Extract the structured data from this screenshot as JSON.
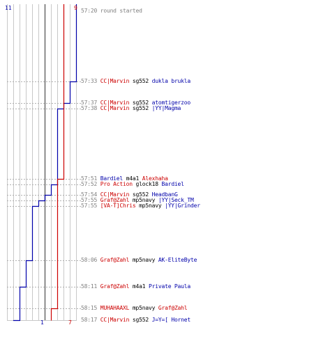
{
  "colors": {
    "blue_team": "#0000aa",
    "red_team": "#cc0000",
    "grid": "#c8c8c8",
    "timestamp": "#808080",
    "weapon": "#000000"
  },
  "scores": {
    "blue_start": "11",
    "red_start": "9",
    "blue_end": "1",
    "red_end": "7"
  },
  "events": [
    {
      "time": "57:20",
      "note": "round started"
    },
    {
      "time": "57:33",
      "killer": "CC|Marvin",
      "killer_team": "red",
      "weapon": "sg552",
      "victim": "dukla brukla",
      "victim_team": "blue"
    },
    {
      "time": "57:37",
      "killer": "CC|Marvin",
      "killer_team": "red",
      "weapon": "sg552",
      "victim": "atomtigerzoo",
      "victim_team": "blue"
    },
    {
      "time": "57:38",
      "killer": "CC|Marvin",
      "killer_team": "red",
      "weapon": "sg552",
      "victim": "|YY|Magma",
      "victim_team": "blue"
    },
    {
      "time": "57:51",
      "killer": "Bardiel",
      "killer_team": "blue",
      "weapon": "m4a1",
      "victim": "Alexhaha",
      "victim_team": "red"
    },
    {
      "time": "57:52",
      "killer": "Pro Action",
      "killer_team": "red",
      "weapon": "glock18",
      "victim": "Bardiel",
      "victim_team": "blue"
    },
    {
      "time": "57:54",
      "killer": "CC|Marvin",
      "killer_team": "red",
      "weapon": "sg552",
      "victim": "HeadbanG",
      "victim_team": "blue"
    },
    {
      "time": "57:55",
      "killer": "Graf@Zahl",
      "killer_team": "red",
      "weapon": "mp5navy",
      "victim": "|YY|Seck_TM",
      "victim_team": "blue"
    },
    {
      "time": "57:55",
      "killer": "[VA-T]Chris",
      "killer_team": "red",
      "weapon": "mp5navy",
      "victim": "|YY|Grinder",
      "victim_team": "blue"
    },
    {
      "time": "58:06",
      "killer": "Graf@Zahl",
      "killer_team": "red",
      "weapon": "mp5navy",
      "victim": "AK-EliteByte",
      "victim_team": "blue"
    },
    {
      "time": "58:11",
      "killer": "Graf@Zahl",
      "killer_team": "red",
      "weapon": "m4a1",
      "victim": "Private Paula",
      "victim_team": "blue"
    },
    {
      "time": "58:15",
      "killer": "MUHAHAAXL",
      "killer_team": "red",
      "weapon": "mp5navy",
      "victim": "Graf@Zahl",
      "victim_team": "red"
    },
    {
      "time": "58:17",
      "killer": "CC|Marvin",
      "killer_team": "red",
      "weapon": "sg552",
      "victim": "J=Y=[ Hornet",
      "victim_team": "blue"
    }
  ],
  "chart_data": {
    "type": "line",
    "title": "",
    "xlabel": "",
    "ylabel": "",
    "x": [
      "57:20",
      "57:33",
      "57:37",
      "57:38",
      "57:51",
      "57:52",
      "57:54",
      "57:55",
      "57:55",
      "58:06",
      "58:11",
      "58:15",
      "58:17"
    ],
    "series": [
      {
        "values": [
          11,
          10,
          9,
          8,
          8,
          7,
          6,
          5,
          4,
          3,
          2,
          2,
          1
        ]
      },
      {
        "values": [
          9,
          9,
          9,
          9,
          8,
          8,
          8,
          8,
          8,
          8,
          8,
          7,
          7
        ]
      }
    ],
    "xlim": [
      0,
      11
    ],
    "vertical_grid": true,
    "horizontal_dotted_guides": true
  }
}
